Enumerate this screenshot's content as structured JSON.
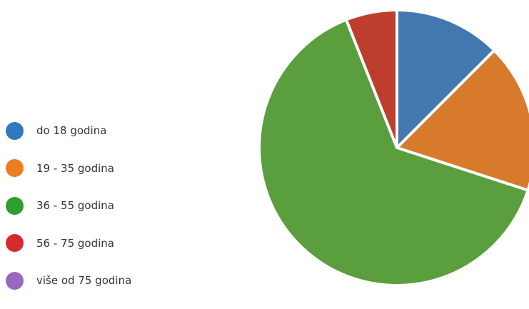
{
  "chart_data": {
    "type": "pie",
    "categories": [
      "do 18 godina",
      "19 - 35 godina",
      "36 - 55 godina",
      "56 - 75 godina",
      "više od 75 godina"
    ],
    "values": [
      12.5,
      17.5,
      64,
      6,
      0
    ],
    "colors": [
      "#2E7ABD",
      "#EE7D1F",
      "#2EA02E",
      "#D52B2C",
      "#9A68BE"
    ],
    "slice_colors": [
      "#4377B0",
      "#D87A2B",
      "#5A9E3E",
      "#BE3E2E",
      "#9A68BE"
    ],
    "start_angle_deg": 0,
    "direction": "clockwise",
    "legend_position": "left"
  }
}
